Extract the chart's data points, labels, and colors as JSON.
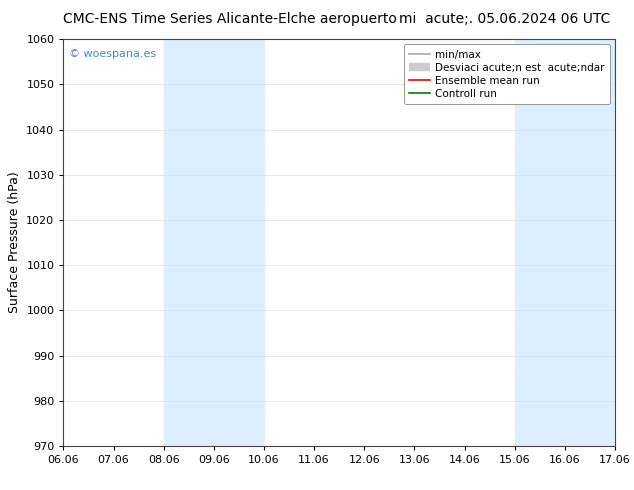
{
  "title_left": "CMC-ENS Time Series Alicante-Elche aeropuerto",
  "title_right": "mi  acute;. 05.06.2024 06 UTC",
  "ylabel": "Surface Pressure (hPa)",
  "watermark": "© woespana.es",
  "ylim": [
    970,
    1060
  ],
  "yticks": [
    970,
    980,
    990,
    1000,
    1010,
    1020,
    1030,
    1040,
    1050,
    1060
  ],
  "xtick_labels": [
    "06.06",
    "07.06",
    "08.06",
    "09.06",
    "10.06",
    "11.06",
    "12.06",
    "13.06",
    "14.06",
    "15.06",
    "16.06",
    "17.06"
  ],
  "shaded_regions": [
    {
      "xstart": 2,
      "xend": 4,
      "color": "#ddeeff"
    },
    {
      "xstart": 9,
      "xend": 11,
      "color": "#ddeeff"
    }
  ],
  "bg_color": "#ffffff",
  "plot_bg_color": "#ffffff",
  "title_fontsize": 10,
  "tick_fontsize": 8,
  "ylabel_fontsize": 9,
  "watermark_color": "#4488cc",
  "legend_fontsize": 7.5,
  "grid_color": "#dddddd",
  "spine_color": "#444444"
}
